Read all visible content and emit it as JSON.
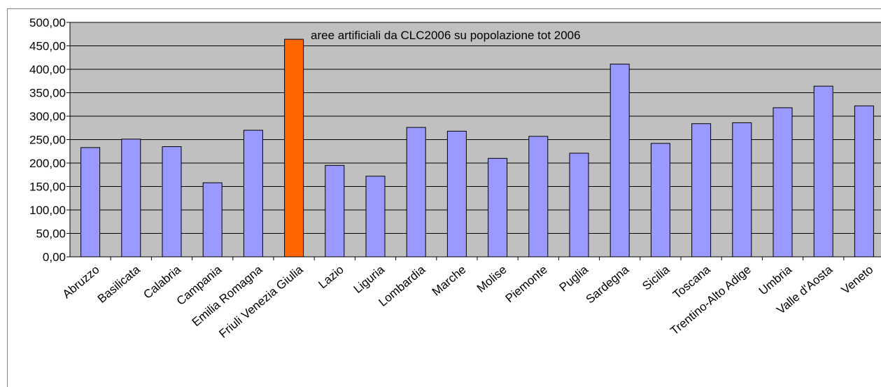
{
  "chart_data": {
    "type": "bar",
    "title": "aree artificiali da CLC2006 su popolazione tot 2006",
    "xlabel": "",
    "ylabel": "",
    "ylim": [
      0,
      500
    ],
    "yticks": [
      "0,00",
      "50,00",
      "100,00",
      "150,00",
      "200,00",
      "250,00",
      "300,00",
      "350,00",
      "400,00",
      "450,00",
      "500,00"
    ],
    "grid": true,
    "categories": [
      "Abruzzo",
      "Basilicata",
      "Calabria",
      "Campania",
      "Emilia Romagna",
      "Friuli Venezia Giulia",
      "Lazio",
      "Liguria",
      "Lombardia",
      "Marche",
      "Molise",
      "Piemonte",
      "Puglia",
      "Sardegna",
      "Sicilia",
      "Toscana",
      "Trentino-Alto Adige",
      "Umbria",
      "Valle d'Aosta",
      "Veneto"
    ],
    "values": [
      233,
      251,
      235,
      158,
      270,
      464,
      195,
      172,
      276,
      268,
      210,
      257,
      221,
      411,
      242,
      284,
      286,
      318,
      364,
      322
    ],
    "highlight_index": 5,
    "colors": {
      "bar": "#9999ff",
      "highlight": "#ff6600",
      "plot_bg": "#c0c0c0",
      "grid": "#000000",
      "outline": "#000000"
    }
  }
}
